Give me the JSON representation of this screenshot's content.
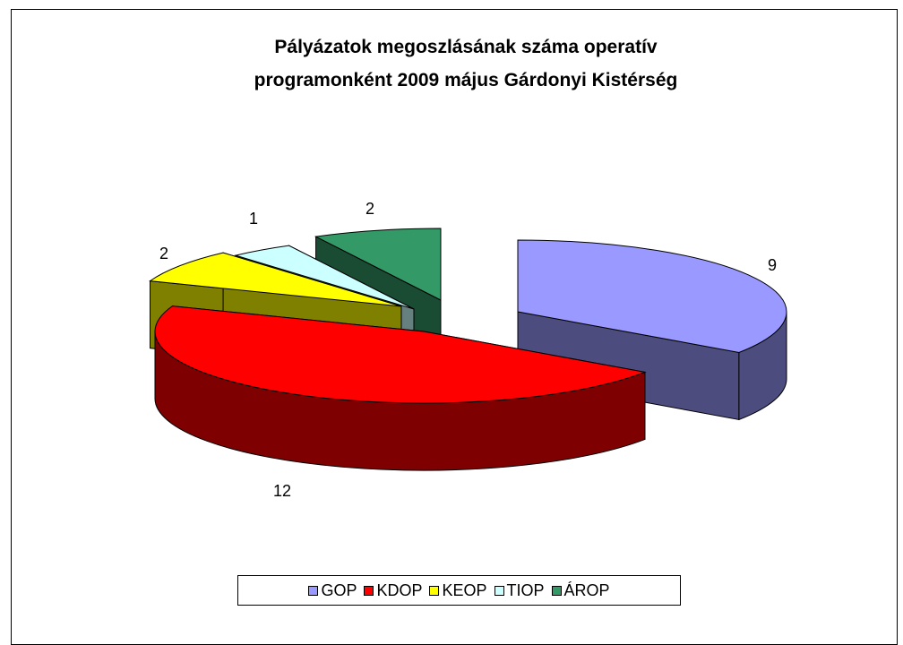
{
  "chart_data": {
    "type": "pie3d",
    "title": "Pályázatok megoszlásának száma operatív\nprogramonként 2009 május Gárdonyi Kistérség",
    "categories": [
      "GOP",
      "KDOP",
      "KEOP",
      "TIOP",
      "ÁROP"
    ],
    "values": [
      9,
      12,
      2,
      1,
      2
    ],
    "colors": [
      "#9999ff",
      "#ff0000",
      "#ffff00",
      "#ccffff",
      "#339966"
    ],
    "legend": "bottom"
  }
}
